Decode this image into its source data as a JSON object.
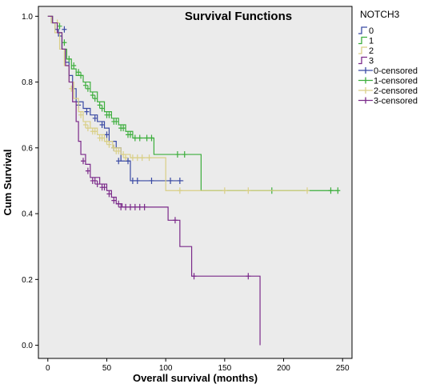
{
  "chart_data": {
    "type": "line",
    "title": "Survival Functions",
    "xlabel": "Overall survival (months)",
    "ylabel": "Cum Survival",
    "xlim": [
      -8,
      258
    ],
    "ylim": [
      -0.04,
      1.03
    ],
    "xticks": [
      0,
      50,
      100,
      150,
      200,
      250
    ],
    "yticks": [
      0.0,
      0.2,
      0.4,
      0.6,
      0.8,
      1.0
    ],
    "xtick_labels": [
      "0",
      "50",
      "100",
      "150",
      "200",
      "250"
    ],
    "ytick_labels": [
      "0.0",
      "0.2",
      "0.4",
      "0.6",
      "0.8",
      "1.0"
    ],
    "legend_title": "NOTCH3",
    "legend_position": "right",
    "background": "#ebebeb",
    "series": [
      {
        "name": "0",
        "color": "#3a4aa4",
        "steps": [
          [
            0,
            1.0
          ],
          [
            3,
            0.98
          ],
          [
            6,
            0.96
          ],
          [
            9,
            0.94
          ],
          [
            12,
            0.9
          ],
          [
            15,
            0.86
          ],
          [
            18,
            0.82
          ],
          [
            21,
            0.78
          ],
          [
            24,
            0.74
          ],
          [
            30,
            0.72
          ],
          [
            36,
            0.7
          ],
          [
            42,
            0.68
          ],
          [
            48,
            0.66
          ],
          [
            52,
            0.62
          ],
          [
            58,
            0.6
          ],
          [
            62,
            0.56
          ],
          [
            70,
            0.5
          ],
          [
            115,
            0.5
          ]
        ],
        "censored": [
          [
            14,
            0.96
          ],
          [
            26,
            0.73
          ],
          [
            33,
            0.71
          ],
          [
            40,
            0.69
          ],
          [
            46,
            0.67
          ],
          [
            50,
            0.64
          ],
          [
            56,
            0.6
          ],
          [
            60,
            0.56
          ],
          [
            68,
            0.56
          ],
          [
            72,
            0.5
          ],
          [
            76,
            0.5
          ],
          [
            88,
            0.5
          ],
          [
            104,
            0.5
          ],
          [
            112,
            0.5
          ]
        ]
      },
      {
        "name": "1",
        "color": "#3cae3c",
        "steps": [
          [
            0,
            1.0
          ],
          [
            4,
            0.98
          ],
          [
            8,
            0.95
          ],
          [
            12,
            0.9
          ],
          [
            16,
            0.87
          ],
          [
            20,
            0.84
          ],
          [
            24,
            0.82
          ],
          [
            30,
            0.8
          ],
          [
            36,
            0.77
          ],
          [
            42,
            0.74
          ],
          [
            48,
            0.71
          ],
          [
            54,
            0.69
          ],
          [
            60,
            0.67
          ],
          [
            66,
            0.65
          ],
          [
            72,
            0.63
          ],
          [
            90,
            0.58
          ],
          [
            130,
            0.47
          ],
          [
            245,
            0.47
          ]
        ],
        "censored": [
          [
            10,
            0.97
          ],
          [
            14,
            0.92
          ],
          [
            18,
            0.87
          ],
          [
            22,
            0.85
          ],
          [
            26,
            0.83
          ],
          [
            28,
            0.82
          ],
          [
            32,
            0.79
          ],
          [
            34,
            0.78
          ],
          [
            38,
            0.76
          ],
          [
            40,
            0.75
          ],
          [
            44,
            0.73
          ],
          [
            46,
            0.72
          ],
          [
            50,
            0.7
          ],
          [
            52,
            0.7
          ],
          [
            56,
            0.68
          ],
          [
            58,
            0.68
          ],
          [
            62,
            0.66
          ],
          [
            64,
            0.66
          ],
          [
            68,
            0.64
          ],
          [
            70,
            0.64
          ],
          [
            74,
            0.63
          ],
          [
            78,
            0.63
          ],
          [
            84,
            0.63
          ],
          [
            88,
            0.63
          ],
          [
            110,
            0.58
          ],
          [
            116,
            0.58
          ],
          [
            190,
            0.47
          ],
          [
            240,
            0.47
          ],
          [
            246,
            0.47
          ]
        ]
      },
      {
        "name": "2",
        "color": "#d9cf86",
        "steps": [
          [
            0,
            1.0
          ],
          [
            3,
            0.98
          ],
          [
            6,
            0.95
          ],
          [
            10,
            0.9
          ],
          [
            14,
            0.85
          ],
          [
            18,
            0.8
          ],
          [
            22,
            0.75
          ],
          [
            26,
            0.71
          ],
          [
            30,
            0.68
          ],
          [
            36,
            0.66
          ],
          [
            42,
            0.64
          ],
          [
            48,
            0.62
          ],
          [
            55,
            0.6
          ],
          [
            62,
            0.58
          ],
          [
            70,
            0.57
          ],
          [
            100,
            0.47
          ],
          [
            220,
            0.47
          ]
        ],
        "censored": [
          [
            8,
            0.98
          ],
          [
            20,
            0.78
          ],
          [
            28,
            0.7
          ],
          [
            32,
            0.67
          ],
          [
            34,
            0.66
          ],
          [
            38,
            0.65
          ],
          [
            40,
            0.65
          ],
          [
            44,
            0.63
          ],
          [
            46,
            0.63
          ],
          [
            50,
            0.62
          ],
          [
            52,
            0.61
          ],
          [
            56,
            0.6
          ],
          [
            58,
            0.59
          ],
          [
            60,
            0.59
          ],
          [
            64,
            0.58
          ],
          [
            66,
            0.57
          ],
          [
            72,
            0.57
          ],
          [
            76,
            0.57
          ],
          [
            80,
            0.57
          ],
          [
            86,
            0.57
          ],
          [
            112,
            0.47
          ],
          [
            150,
            0.47
          ],
          [
            170,
            0.47
          ],
          [
            220,
            0.47
          ]
        ]
      },
      {
        "name": "3",
        "color": "#7b2a8a",
        "steps": [
          [
            0,
            1.0
          ],
          [
            4,
            0.98
          ],
          [
            8,
            0.95
          ],
          [
            12,
            0.9
          ],
          [
            15,
            0.85
          ],
          [
            18,
            0.8
          ],
          [
            21,
            0.74
          ],
          [
            24,
            0.68
          ],
          [
            26,
            0.62
          ],
          [
            28,
            0.58
          ],
          [
            32,
            0.55
          ],
          [
            36,
            0.51
          ],
          [
            44,
            0.49
          ],
          [
            50,
            0.47
          ],
          [
            54,
            0.45
          ],
          [
            58,
            0.43
          ],
          [
            63,
            0.42
          ],
          [
            102,
            0.38
          ],
          [
            112,
            0.3
          ],
          [
            122,
            0.21
          ],
          [
            180,
            0.21
          ],
          [
            180,
            0.0
          ]
        ],
        "censored": [
          [
            30,
            0.56
          ],
          [
            34,
            0.53
          ],
          [
            38,
            0.5
          ],
          [
            40,
            0.5
          ],
          [
            42,
            0.49
          ],
          [
            46,
            0.48
          ],
          [
            48,
            0.48
          ],
          [
            52,
            0.46
          ],
          [
            56,
            0.44
          ],
          [
            60,
            0.43
          ],
          [
            62,
            0.42
          ],
          [
            66,
            0.42
          ],
          [
            70,
            0.42
          ],
          [
            74,
            0.42
          ],
          [
            78,
            0.42
          ],
          [
            82,
            0.42
          ],
          [
            108,
            0.38
          ],
          [
            124,
            0.21
          ],
          [
            170,
            0.21
          ]
        ]
      }
    ],
    "legend_entries": [
      {
        "label": "0",
        "color": "#3a4aa4",
        "kind": "line"
      },
      {
        "label": "1",
        "color": "#3cae3c",
        "kind": "line"
      },
      {
        "label": "2",
        "color": "#d9cf86",
        "kind": "line"
      },
      {
        "label": "3",
        "color": "#7b2a8a",
        "kind": "line"
      },
      {
        "label": "0-censored",
        "color": "#3a4aa4",
        "kind": "cross"
      },
      {
        "label": "1-censored",
        "color": "#3cae3c",
        "kind": "cross"
      },
      {
        "label": "2-censored",
        "color": "#d9cf86",
        "kind": "cross"
      },
      {
        "label": "3-censored",
        "color": "#7b2a8a",
        "kind": "cross"
      }
    ]
  }
}
